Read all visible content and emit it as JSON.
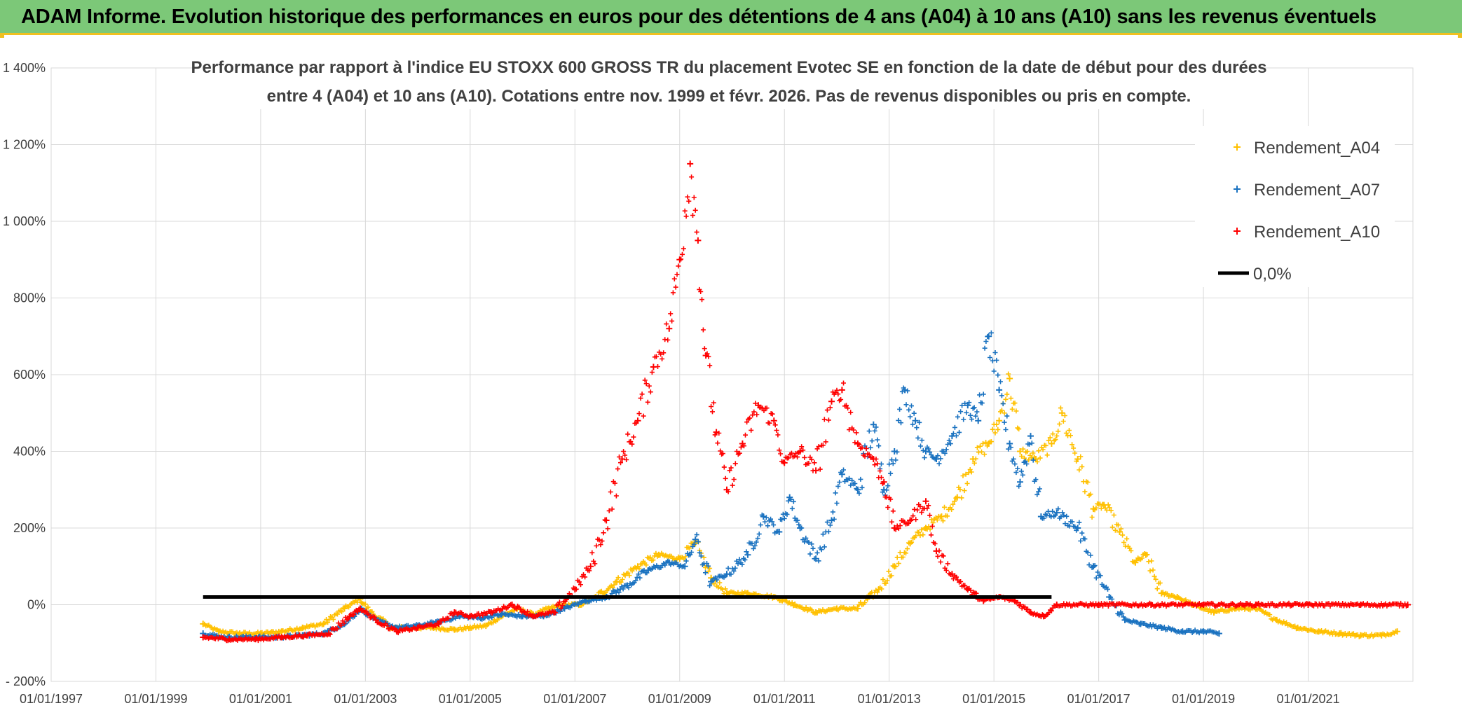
{
  "header": {
    "title": "ADAM Informe. Evolution historique des performances en euros pour des détentions de 4 ans (A04) à 10 ans (A10) sans les revenus éventuels"
  },
  "chart_data": {
    "type": "scatter",
    "title_lines": [
      "Performance par rapport à l'indice EU STOXX 600 GROSS TR  du placement Evotec SE en fonction de la date de début pour des durées",
      "entre 4 (A04) et 10 ans (A10). Cotations entre nov. 1999 et févr. 2026. Pas de revenus disponibles ou pris en compte."
    ],
    "xlabel": "",
    "ylabel": "",
    "x_range": [
      1997.0,
      2023.0
    ],
    "ylim": [
      -200,
      1400
    ],
    "y_ticks": [
      -200,
      0,
      200,
      400,
      600,
      800,
      1000,
      1200,
      1400
    ],
    "y_tick_labels": [
      "- 200%",
      "0%",
      "200%",
      "400%",
      "600%",
      "800%",
      "1 000%",
      "1 200%",
      "1 400%"
    ],
    "x_ticks": [
      1997,
      1999,
      2001,
      2003,
      2005,
      2007,
      2009,
      2011,
      2013,
      2015,
      2017,
      2019,
      2021
    ],
    "x_tick_labels": [
      "01/01/1997",
      "01/01/1999",
      "01/01/2001",
      "01/01/2003",
      "01/01/2005",
      "01/01/2007",
      "01/01/2009",
      "01/01/2011",
      "01/01/2013",
      "01/01/2015",
      "01/01/2017",
      "01/01/2019",
      "01/01/2021"
    ],
    "legend_position": "top-right",
    "series": [
      {
        "name": "Rendement_A04",
        "color": "#ffc000",
        "marker": "plus",
        "points": [
          [
            1999.9,
            -50
          ],
          [
            2000.2,
            -70
          ],
          [
            2000.6,
            -75
          ],
          [
            2001.0,
            -75
          ],
          [
            2001.4,
            -70
          ],
          [
            2001.8,
            -60
          ],
          [
            2002.2,
            -50
          ],
          [
            2002.6,
            -10
          ],
          [
            2002.9,
            15
          ],
          [
            2003.1,
            -20
          ],
          [
            2003.5,
            -60
          ],
          [
            2003.9,
            -60
          ],
          [
            2004.3,
            -60
          ],
          [
            2004.7,
            -65
          ],
          [
            2005.0,
            -60
          ],
          [
            2005.3,
            -55
          ],
          [
            2005.6,
            -30
          ],
          [
            2005.9,
            -10
          ],
          [
            2006.2,
            -25
          ],
          [
            2006.5,
            -10
          ],
          [
            2006.8,
            0
          ],
          [
            2007.1,
            0
          ],
          [
            2007.4,
            20
          ],
          [
            2007.8,
            60
          ],
          [
            2008.2,
            100
          ],
          [
            2008.6,
            130
          ],
          [
            2009.0,
            120
          ],
          [
            2009.3,
            160
          ],
          [
            2009.6,
            70
          ],
          [
            2009.9,
            30
          ],
          [
            2010.3,
            30
          ],
          [
            2010.8,
            20
          ],
          [
            2011.2,
            0
          ],
          [
            2011.6,
            -20
          ],
          [
            2012.0,
            -10
          ],
          [
            2012.4,
            -10
          ],
          [
            2012.8,
            40
          ],
          [
            2013.1,
            100
          ],
          [
            2013.4,
            160
          ],
          [
            2013.7,
            200
          ],
          [
            2014.0,
            230
          ],
          [
            2014.3,
            280
          ],
          [
            2014.6,
            380
          ],
          [
            2014.9,
            420
          ],
          [
            2015.1,
            480
          ],
          [
            2015.3,
            590
          ],
          [
            2015.5,
            400
          ],
          [
            2015.8,
            380
          ],
          [
            2016.1,
            420
          ],
          [
            2016.3,
            500
          ],
          [
            2016.6,
            380
          ],
          [
            2016.9,
            250
          ],
          [
            2017.1,
            260
          ],
          [
            2017.4,
            190
          ],
          [
            2017.7,
            110
          ],
          [
            2017.9,
            130
          ],
          [
            2018.2,
            30
          ],
          [
            2018.5,
            20
          ],
          [
            2018.8,
            0
          ],
          [
            2019.2,
            -20
          ],
          [
            2019.6,
            -10
          ],
          [
            2020.0,
            -10
          ],
          [
            2020.4,
            -40
          ],
          [
            2020.8,
            -60
          ],
          [
            2021.2,
            -70
          ],
          [
            2021.6,
            -75
          ],
          [
            2022.0,
            -80
          ],
          [
            2022.4,
            -80
          ],
          [
            2022.7,
            -70
          ]
        ]
      },
      {
        "name": "Rendement_A07",
        "color": "#1a72c0",
        "marker": "plus",
        "points": [
          [
            1999.9,
            -75
          ],
          [
            2000.3,
            -85
          ],
          [
            2000.8,
            -85
          ],
          [
            2001.3,
            -85
          ],
          [
            2001.8,
            -80
          ],
          [
            2002.2,
            -75
          ],
          [
            2002.6,
            -50
          ],
          [
            2002.9,
            -10
          ],
          [
            2003.2,
            -40
          ],
          [
            2003.6,
            -60
          ],
          [
            2004.0,
            -55
          ],
          [
            2004.4,
            -45
          ],
          [
            2004.8,
            -30
          ],
          [
            2005.2,
            -35
          ],
          [
            2005.6,
            -25
          ],
          [
            2006.0,
            -30
          ],
          [
            2006.4,
            -30
          ],
          [
            2006.8,
            -10
          ],
          [
            2007.2,
            10
          ],
          [
            2007.6,
            20
          ],
          [
            2008.0,
            50
          ],
          [
            2008.4,
            90
          ],
          [
            2008.8,
            110
          ],
          [
            2009.1,
            100
          ],
          [
            2009.3,
            170
          ],
          [
            2009.6,
            60
          ],
          [
            2009.9,
            80
          ],
          [
            2010.3,
            130
          ],
          [
            2010.6,
            230
          ],
          [
            2010.9,
            190
          ],
          [
            2011.1,
            280
          ],
          [
            2011.3,
            200
          ],
          [
            2011.6,
            120
          ],
          [
            2011.9,
            220
          ],
          [
            2012.1,
            340
          ],
          [
            2012.4,
            300
          ],
          [
            2012.7,
            470
          ],
          [
            2012.9,
            300
          ],
          [
            2013.1,
            400
          ],
          [
            2013.3,
            560
          ],
          [
            2013.5,
            480
          ],
          [
            2013.7,
            400
          ],
          [
            2013.9,
            380
          ],
          [
            2014.2,
            440
          ],
          [
            2014.5,
            520
          ],
          [
            2014.7,
            480
          ],
          [
            2014.9,
            700
          ],
          [
            2015.1,
            560
          ],
          [
            2015.3,
            420
          ],
          [
            2015.5,
            320
          ],
          [
            2015.7,
            440
          ],
          [
            2015.9,
            230
          ],
          [
            2016.2,
            240
          ],
          [
            2016.6,
            200
          ],
          [
            2016.9,
            100
          ],
          [
            2017.2,
            20
          ],
          [
            2017.5,
            -40
          ],
          [
            2017.8,
            -50
          ],
          [
            2018.2,
            -60
          ],
          [
            2018.6,
            -70
          ],
          [
            2019.0,
            -70
          ],
          [
            2019.3,
            -75
          ]
        ]
      },
      {
        "name": "Rendement_A10",
        "color": "#ff0000",
        "marker": "plus",
        "points": [
          [
            1999.9,
            -85
          ],
          [
            2000.4,
            -90
          ],
          [
            2000.9,
            -90
          ],
          [
            2001.4,
            -85
          ],
          [
            2001.9,
            -80
          ],
          [
            2002.3,
            -75
          ],
          [
            2002.7,
            -30
          ],
          [
            2002.9,
            -10
          ],
          [
            2003.2,
            -40
          ],
          [
            2003.6,
            -70
          ],
          [
            2004.0,
            -60
          ],
          [
            2004.4,
            -50
          ],
          [
            2004.7,
            -20
          ],
          [
            2005.0,
            -30
          ],
          [
            2005.4,
            -20
          ],
          [
            2005.8,
            0
          ],
          [
            2006.2,
            -30
          ],
          [
            2006.6,
            -20
          ],
          [
            2007.0,
            40
          ],
          [
            2007.3,
            100
          ],
          [
            2007.6,
            220
          ],
          [
            2007.9,
            380
          ],
          [
            2008.2,
            480
          ],
          [
            2008.5,
            620
          ],
          [
            2008.8,
            720
          ],
          [
            2009.0,
            900
          ],
          [
            2009.2,
            1150
          ],
          [
            2009.35,
            950
          ],
          [
            2009.5,
            650
          ],
          [
            2009.7,
            450
          ],
          [
            2009.9,
            300
          ],
          [
            2010.2,
            420
          ],
          [
            2010.5,
            520
          ],
          [
            2010.8,
            480
          ],
          [
            2011.0,
            370
          ],
          [
            2011.3,
            400
          ],
          [
            2011.6,
            350
          ],
          [
            2011.9,
            530
          ],
          [
            2012.1,
            560
          ],
          [
            2012.4,
            420
          ],
          [
            2012.7,
            380
          ],
          [
            2012.9,
            320
          ],
          [
            2013.1,
            200
          ],
          [
            2013.4,
            220
          ],
          [
            2013.7,
            270
          ],
          [
            2013.9,
            140
          ],
          [
            2014.2,
            80
          ],
          [
            2014.5,
            40
          ],
          [
            2014.8,
            10
          ],
          [
            2015.1,
            20
          ],
          [
            2015.4,
            10
          ],
          [
            2015.7,
            -20
          ],
          [
            2015.95,
            -30
          ],
          [
            2016.2,
            0
          ],
          [
            2017.0,
            0
          ],
          [
            2018.0,
            0
          ],
          [
            2019.0,
            0
          ],
          [
            2020.0,
            0
          ],
          [
            2021.0,
            0
          ],
          [
            2022.0,
            0
          ],
          [
            2022.9,
            0
          ]
        ]
      }
    ],
    "reference_line": {
      "name": "0,0%",
      "color": "#000000",
      "y": 0,
      "x_from": 1999.9,
      "x_to": 2016.1
    },
    "legend": [
      {
        "label": "Rendement_A04",
        "color": "#ffc000",
        "marker": "plus"
      },
      {
        "label": "Rendement_A07",
        "color": "#1a72c0",
        "marker": "plus"
      },
      {
        "label": "Rendement_A10",
        "color": "#ff0000",
        "marker": "plus"
      },
      {
        "label": "0,0%",
        "color": "#000000",
        "marker": "line"
      }
    ]
  }
}
